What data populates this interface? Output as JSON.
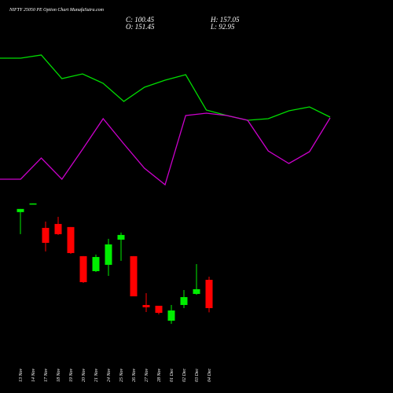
{
  "chart_data": [
    {
      "type": "candlestick",
      "title": "NIFTY 25050  PE Option  Chart MunafaSutra.com",
      "info": {
        "close": "C: 100.45",
        "high": "H: 157.05",
        "open": "O: 151.45",
        "low": "L: 92.95"
      },
      "categories": [
        "13 Nov",
        "14 Nov",
        "17 Nov",
        "18 Nov",
        "19 Nov",
        "20 Nov",
        "21 Nov",
        "24 Nov",
        "25 Nov",
        "26 Nov",
        "27 Nov",
        "28 Nov",
        "01 Dec",
        "02 Dec",
        "03 Dec",
        "04 Dec"
      ],
      "open": [
        273.3,
        287.4,
        244.9,
        252.0,
        246.4,
        194.0,
        167.0,
        178.4,
        223.7,
        194.0,
        106.1,
        104.7,
        77.8,
        106.1,
        126.0,
        151.45
      ],
      "close": [
        279.0,
        288.9,
        218.0,
        233.6,
        199.6,
        147.2,
        192.5,
        215.2,
        232.2,
        121.7,
        101.9,
        92.0,
        96.2,
        120.3,
        134.5,
        100.45
      ],
      "high": [
        279.0,
        288.9,
        256.3,
        264.8,
        246.4,
        194.0,
        196.8,
        225.1,
        236.5,
        194.0,
        127.4,
        104.7,
        106.1,
        133.0,
        179.8,
        157.05
      ],
      "low": [
        233.6,
        287.4,
        202.5,
        232.2,
        198.2,
        145.8,
        165.6,
        158.5,
        185.5,
        121.7,
        93.4,
        89.1,
        72.1,
        100.5,
        124.5,
        92.95
      ],
      "up_color": "#00ee00",
      "down_color": "#ff0000",
      "ylim": [
        60,
        300
      ]
    },
    {
      "type": "line",
      "categories": [
        null,
        null,
        null,
        null,
        null,
        null,
        null,
        null,
        null,
        null,
        null,
        null,
        null,
        null,
        null,
        null,
        null
      ],
      "series": [
        {
          "color": "#00dd00",
          "axis": "y2",
          "values": [
            88,
            88,
            90,
            75,
            78,
            72,
            60.5,
            69.5,
            74,
            77.5,
            55,
            51.5,
            48.5,
            49.5,
            54.5,
            57,
            50.5
          ]
        },
        {
          "color": "#cc00cc",
          "axis": "y2",
          "values": [
            11,
            11,
            24.5,
            11,
            30,
            49.5,
            33.5,
            18,
            7.5,
            51.5,
            53,
            51.5,
            48.5,
            29,
            21,
            28.5,
            50
          ]
        }
      ],
      "y2lim": [
        0,
        100
      ]
    }
  ]
}
